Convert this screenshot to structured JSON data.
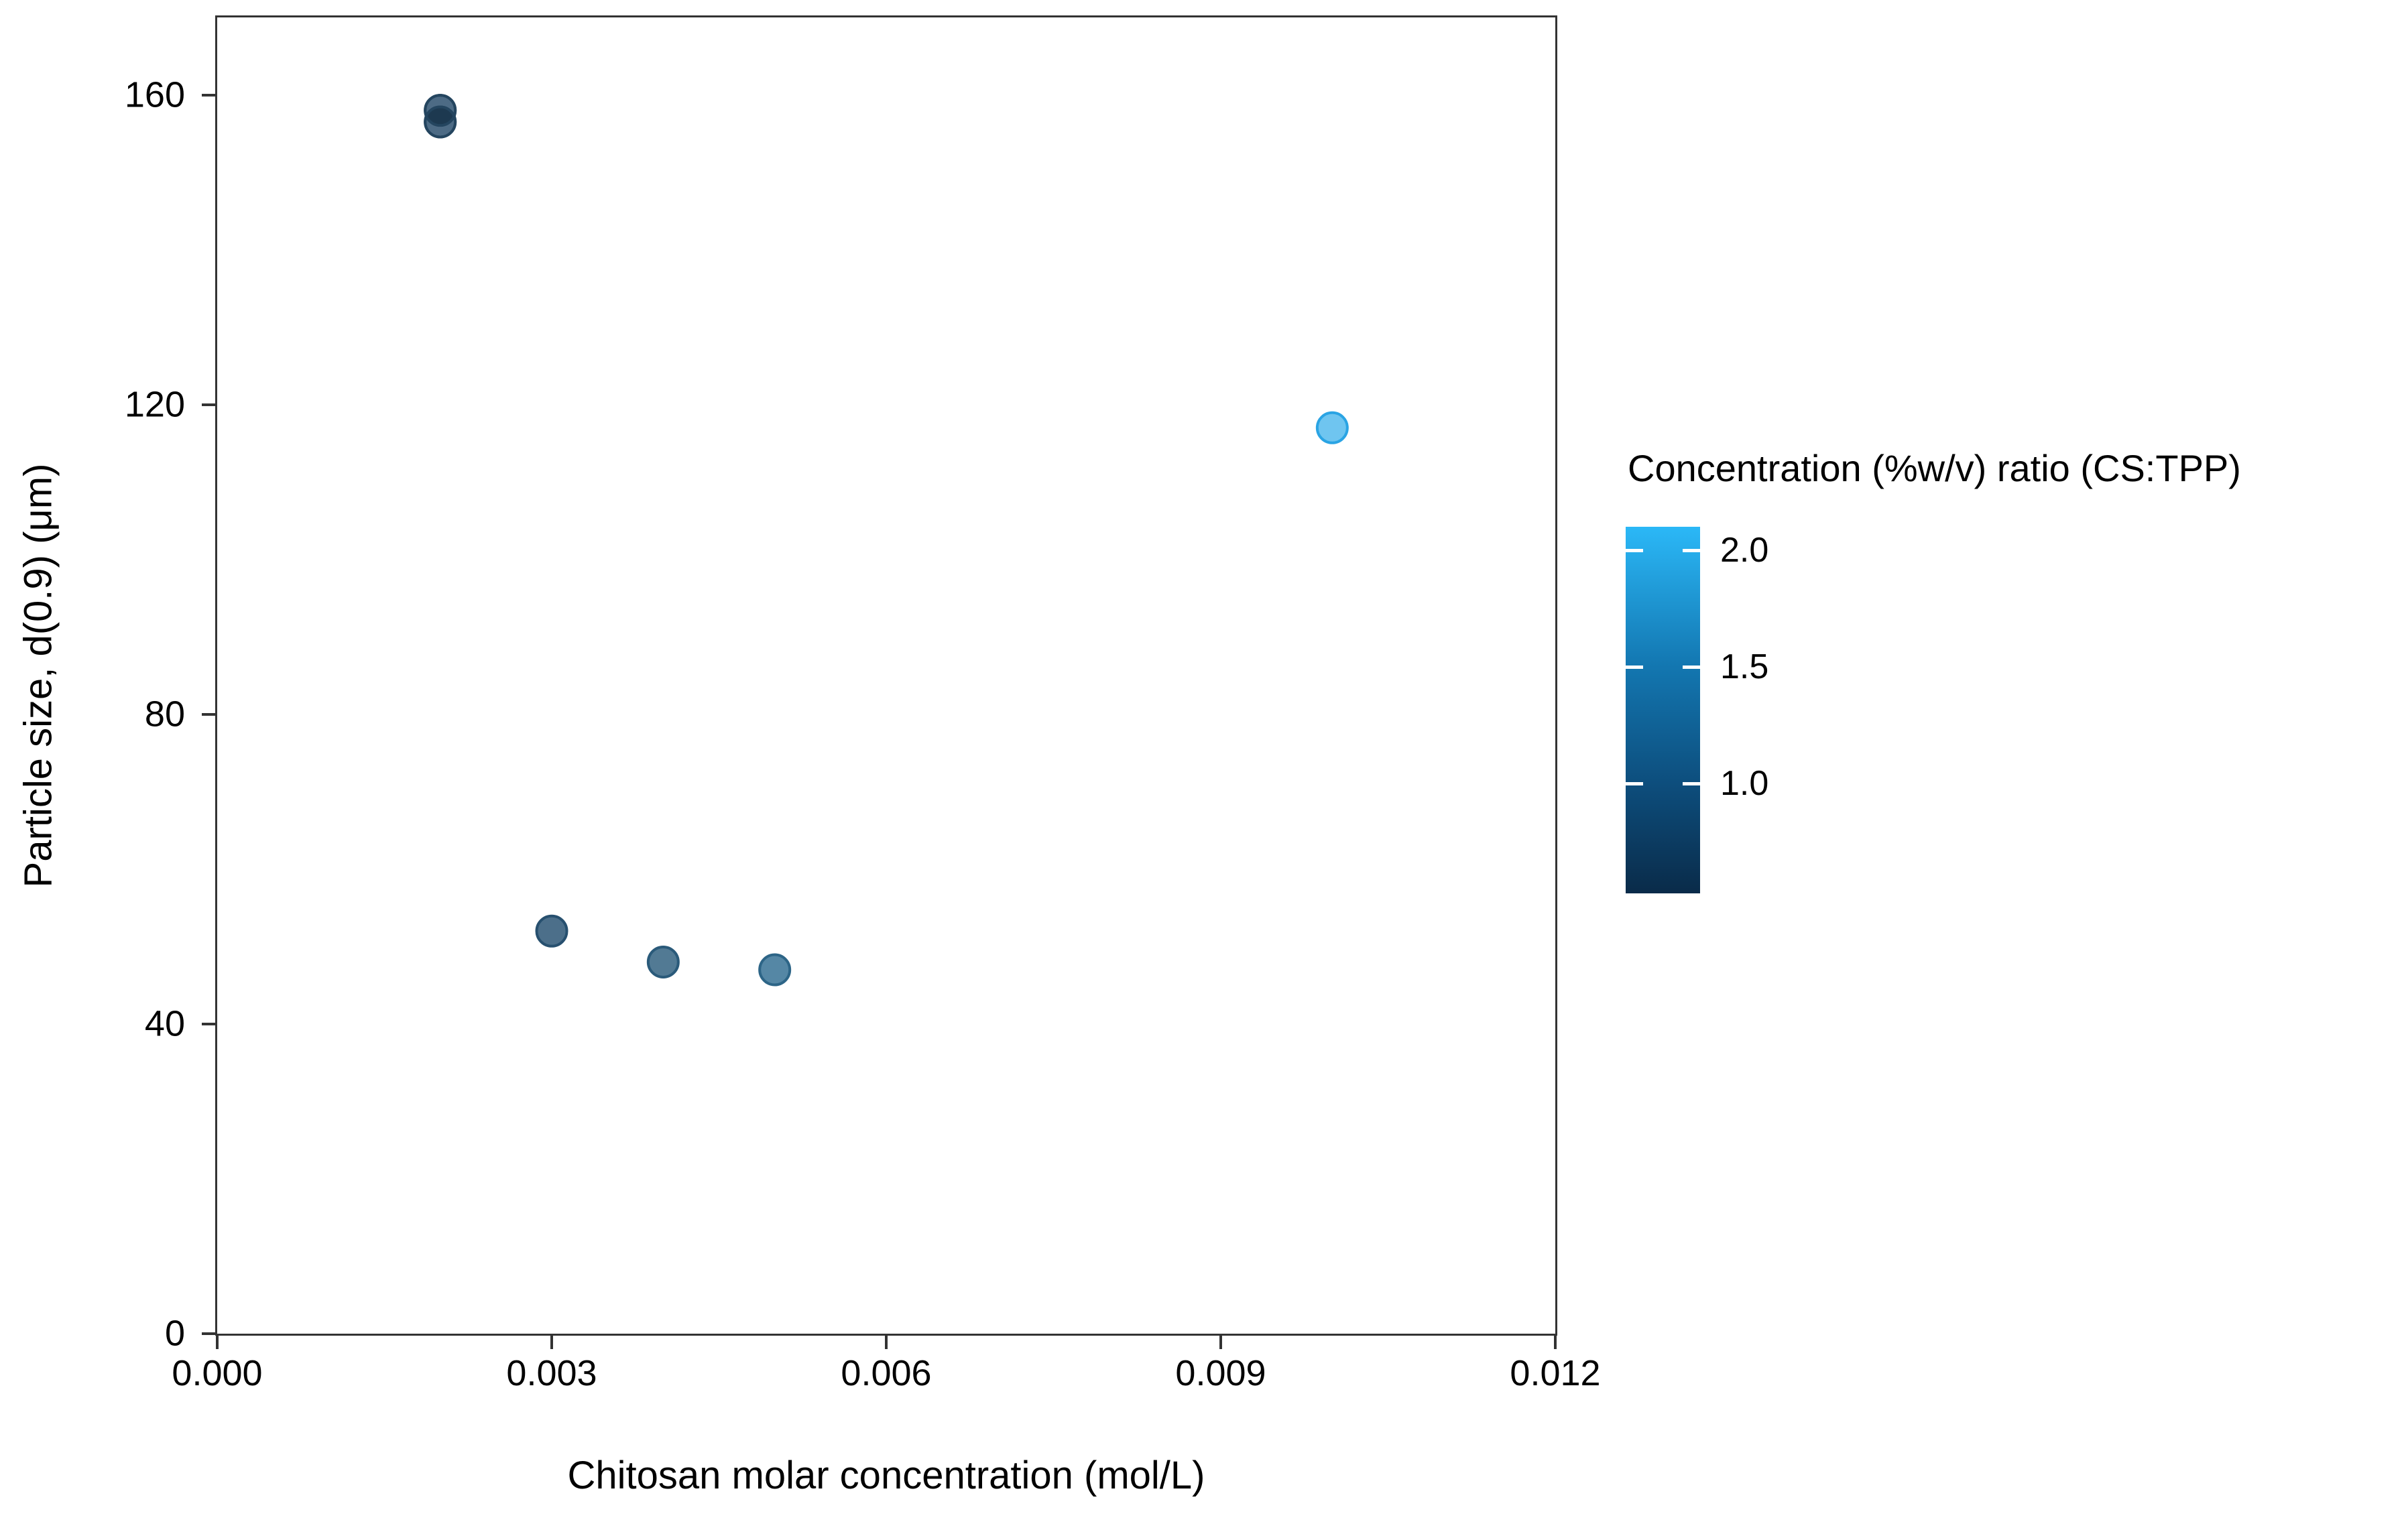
{
  "figure": {
    "background": "#ffffff",
    "axis_line_color": "#333333",
    "text_color": "#000000"
  },
  "chart_data": {
    "type": "scatter",
    "title": "",
    "xlabel": "Chitosan molar concentration (mol/L)",
    "ylabel": "Particle size, d(0.9) (μm)",
    "x_axis": {
      "range": [
        0,
        0.012
      ],
      "ticks": [
        {
          "value": 0.0,
          "label": "0.000"
        },
        {
          "value": 0.003,
          "label": "0.003"
        },
        {
          "value": 0.006,
          "label": "0.006"
        },
        {
          "value": 0.009,
          "label": "0.009"
        },
        {
          "value": 0.012,
          "label": "0.012"
        }
      ]
    },
    "y_axis": {
      "range": [
        0,
        170
      ],
      "ticks": [
        {
          "value": 0,
          "label": "0"
        },
        {
          "value": 40,
          "label": "40"
        },
        {
          "value": 80,
          "label": "80"
        },
        {
          "value": 120,
          "label": "120"
        },
        {
          "value": 160,
          "label": "160"
        }
      ]
    },
    "point_radius_px": 22.5,
    "point_stroke_width_px": 4,
    "overlap_color": "#1d3950",
    "points": [
      {
        "x": 0.002,
        "y": 158.0,
        "ratio_color_estimate": 0.75,
        "fill": "#4d6b85",
        "stroke": "#24455f"
      },
      {
        "x": 0.002,
        "y": 156.5,
        "ratio_color_estimate": 0.75,
        "fill": "#4d6b85",
        "stroke": "#24455f"
      },
      {
        "x": 0.003,
        "y": 52.0,
        "ratio_color_estimate": 0.9,
        "fill": "#4c6f8a",
        "stroke": "#27506f"
      },
      {
        "x": 0.004,
        "y": 48.0,
        "ratio_color_estimate": 1.0,
        "fill": "#527a94",
        "stroke": "#2a5a7a"
      },
      {
        "x": 0.005,
        "y": 47.0,
        "ratio_color_estimate": 1.2,
        "fill": "#5587a5",
        "stroke": "#2d6587"
      },
      {
        "x": 0.01,
        "y": 117.0,
        "ratio_color_estimate": 2.0,
        "fill": "#6fc5f0",
        "stroke": "#2aa4e4"
      }
    ],
    "legend": {
      "title": "Concentration (%w/v) ratio (CS:TPP)",
      "type": "colorbar",
      "range": [
        0.53,
        2.1
      ],
      "ticks": [
        {
          "value": 2.0,
          "label": "2.0"
        },
        {
          "value": 1.5,
          "label": "1.5"
        },
        {
          "value": 1.0,
          "label": "1.0"
        }
      ],
      "gradient": [
        {
          "stop": 0.0,
          "color": "#2bb8f7"
        },
        {
          "stop": 0.378,
          "color": "#1377b1"
        },
        {
          "stop": 0.7,
          "color": "#0d4e7d"
        },
        {
          "stop": 1.0,
          "color": "#0a2b49"
        }
      ],
      "tick_dash_color": "#ffffff"
    },
    "grid": false,
    "legend_position": "right"
  }
}
